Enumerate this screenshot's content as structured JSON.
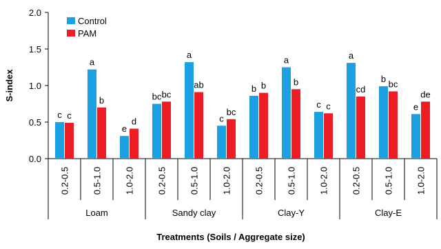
{
  "chart_data": {
    "type": "bar",
    "xlabel": "Treatments (Soils / Aggregate size)",
    "ylabel": "S-index",
    "ylim": [
      0,
      2
    ],
    "yticks": [
      "0.0",
      "0.5",
      "1.0",
      "1.5",
      "2.0"
    ],
    "grid": false,
    "legend_position": "top-left",
    "groups": [
      "Loam",
      "Sandy clay",
      "Clay-Y",
      "Clay-E"
    ],
    "categories": [
      "0.2-0.5",
      "0.5-1.0",
      "1.0-2.0",
      "0.2-0.5",
      "0.5-1.0",
      "1.0-2.0",
      "0.2-0.5",
      "0.5-1.0",
      "1.0-2.0",
      "0.2-0.5",
      "0.5-1.0",
      "1.0-2.0"
    ],
    "series": [
      {
        "name": "Control",
        "color": "#1BA1E2",
        "values": [
          0.5,
          1.22,
          0.31,
          0.75,
          1.32,
          0.45,
          0.86,
          1.25,
          0.64,
          1.31,
          0.99,
          0.61
        ],
        "labels": [
          "c",
          "a",
          "e",
          "bc",
          "a",
          "c",
          "b",
          "a",
          "c",
          "a",
          "b",
          "e"
        ]
      },
      {
        "name": "PAM",
        "color": "#EE1C25",
        "values": [
          0.49,
          0.7,
          0.41,
          0.78,
          0.91,
          0.54,
          0.9,
          0.95,
          0.62,
          0.85,
          0.92,
          0.78
        ],
        "labels": [
          "c",
          "b",
          "d",
          "bc",
          "ab",
          "bc",
          "b",
          "b",
          "c",
          "cd",
          "bc",
          "de"
        ]
      }
    ]
  }
}
